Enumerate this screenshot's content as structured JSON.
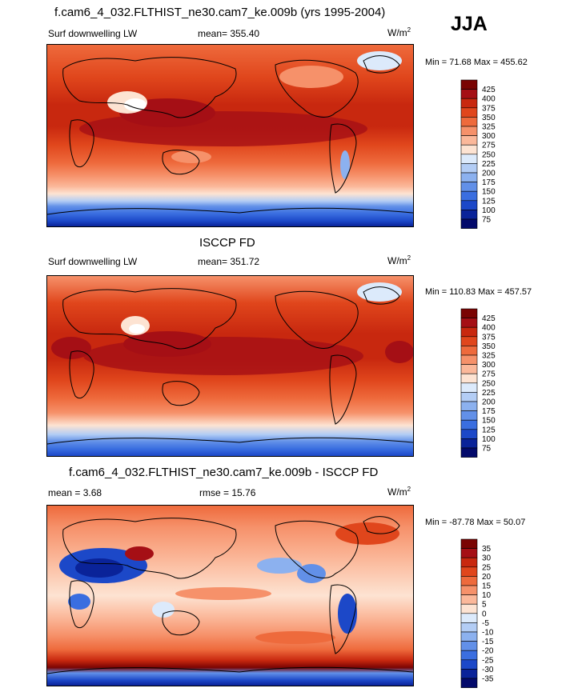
{
  "season": "JJA",
  "chart_data": [
    {
      "type": "heatmap",
      "title": "f.cam6_4_032.FLTHIST_ne30.cam7_ke.009b (yrs 1995-2004)",
      "left_label": "Surf downwelling LW",
      "center_label": "mean= 355.40",
      "units": "W/m",
      "units_sup": "2",
      "minmax": "Min =  71.68 Max = 455.62",
      "colorbar": {
        "levels": [
          "425",
          "400",
          "375",
          "350",
          "325",
          "300",
          "275",
          "250",
          "225",
          "200",
          "175",
          "150",
          "125",
          "100",
          "75"
        ],
        "colors": [
          "#7a0403",
          "#a50f15",
          "#c8280f",
          "#e0461c",
          "#ee6a3c",
          "#f6916a",
          "#fbb89a",
          "#fde3d2",
          "#dceafb",
          "#b3cdf5",
          "#8cb1ef",
          "#6290e8",
          "#3a6ee0",
          "#1c48c8",
          "#0a2399",
          "#030a6b"
        ]
      }
    },
    {
      "type": "heatmap",
      "title": "ISCCP FD",
      "left_label": "Surf downwelling LW",
      "center_label": "mean= 351.72",
      "units": "W/m",
      "units_sup": "2",
      "minmax": "Min = 110.83 Max = 457.57",
      "colorbar": {
        "levels": [
          "425",
          "400",
          "375",
          "350",
          "325",
          "300",
          "275",
          "250",
          "225",
          "200",
          "175",
          "150",
          "125",
          "100",
          "75"
        ],
        "colors": [
          "#7a0403",
          "#a50f15",
          "#c8280f",
          "#e0461c",
          "#ee6a3c",
          "#f6916a",
          "#fbb89a",
          "#fde3d2",
          "#dceafb",
          "#b3cdf5",
          "#8cb1ef",
          "#6290e8",
          "#3a6ee0",
          "#1c48c8",
          "#0a2399",
          "#030a6b"
        ]
      }
    },
    {
      "type": "heatmap",
      "title": "f.cam6_4_032.FLTHIST_ne30.cam7_ke.009b - ISCCP FD",
      "left_label": "mean =   3.68",
      "center_label": "rmse =  15.76",
      "units": "W/m",
      "units_sup": "2",
      "minmax": "Min = -87.78 Max =  50.07",
      "colorbar": {
        "levels": [
          "35",
          "30",
          "25",
          "20",
          "15",
          "10",
          "5",
          "0",
          "-5",
          "-10",
          "-15",
          "-20",
          "-25",
          "-30",
          "-35"
        ],
        "colors": [
          "#7a0403",
          "#a50f15",
          "#c8280f",
          "#e0461c",
          "#ee6a3c",
          "#f6916a",
          "#fbb89a",
          "#fde3d2",
          "#dceafb",
          "#b3cdf5",
          "#8cb1ef",
          "#6290e8",
          "#3a6ee0",
          "#1c48c8",
          "#0a2399",
          "#030a6b"
        ]
      }
    }
  ]
}
